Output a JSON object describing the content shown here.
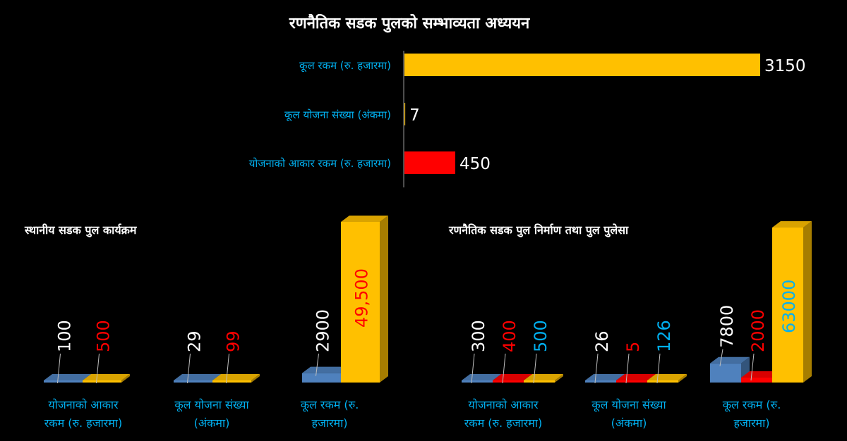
{
  "colors": {
    "background": "#000000",
    "white": "#ffffff",
    "gold": "#ffc000",
    "red": "#ff0000",
    "blue": "#4f81bd",
    "cyan_label": "#00b0f0"
  },
  "chart_data": [
    {
      "type": "bar",
      "orientation": "horizontal",
      "title": "रणनैतिक सडक पुलको सम्भाव्यता अध्ययन",
      "categories": [
        "कूल रकम (रु. हजारमा)",
        "कूल योजना संख्या (अंकमा)",
        "योजनाको आकार रकम (रु. हजारमा)"
      ],
      "values": [
        3150,
        7,
        450
      ],
      "value_labels": [
        "3150",
        "7",
        "450"
      ],
      "bar_colors": [
        "#ffc000",
        "#ffc000",
        "#ff0000"
      ],
      "grid": false,
      "legend": "none"
    },
    {
      "type": "bar",
      "style": "3d-grouped",
      "title": "स्थानीय सडक पुल कार्यक्रम",
      "categories": [
        "योजनाको आकार रकम (रु. हजारमा)",
        "कूल योजना संख्या (अंकमा)",
        "कूल रकम (रु. हजारमा)"
      ],
      "series": [
        {
          "values": [
            100,
            29,
            2900
          ],
          "value_labels": [
            "100",
            "29",
            "2900"
          ],
          "color": "#4f81bd",
          "label_color": "#ffffff"
        },
        {
          "values": [
            500,
            99,
            49500
          ],
          "value_labels": [
            "500",
            "99",
            "49,500"
          ],
          "color": "#ffc000",
          "label_color": "#ff0000"
        }
      ],
      "grid": false,
      "legend": "none"
    },
    {
      "type": "bar",
      "style": "3d-grouped",
      "title": "रणनैतिक सडक पुल निर्माण तथा पुल पुलेसा",
      "categories": [
        "योजनाको आकार रकम (रु. हजारमा)",
        "कूल योजना संख्या (अंकमा)",
        "कूल रकम (रु. हजारमा)"
      ],
      "series": [
        {
          "values": [
            300,
            26,
            7800
          ],
          "value_labels": [
            "300",
            "26",
            "7800"
          ],
          "color": "#4f81bd",
          "label_color": "#ffffff"
        },
        {
          "values": [
            400,
            5,
            2000
          ],
          "value_labels": [
            "400",
            "5",
            "2000"
          ],
          "color": "#ff0000",
          "label_color": "#ff0000"
        },
        {
          "values": [
            500,
            126,
            63000
          ],
          "value_labels": [
            "500",
            "126",
            "63000"
          ],
          "color": "#ffc000",
          "label_color": "#00b0f0"
        }
      ],
      "grid": false,
      "legend": "none"
    }
  ]
}
